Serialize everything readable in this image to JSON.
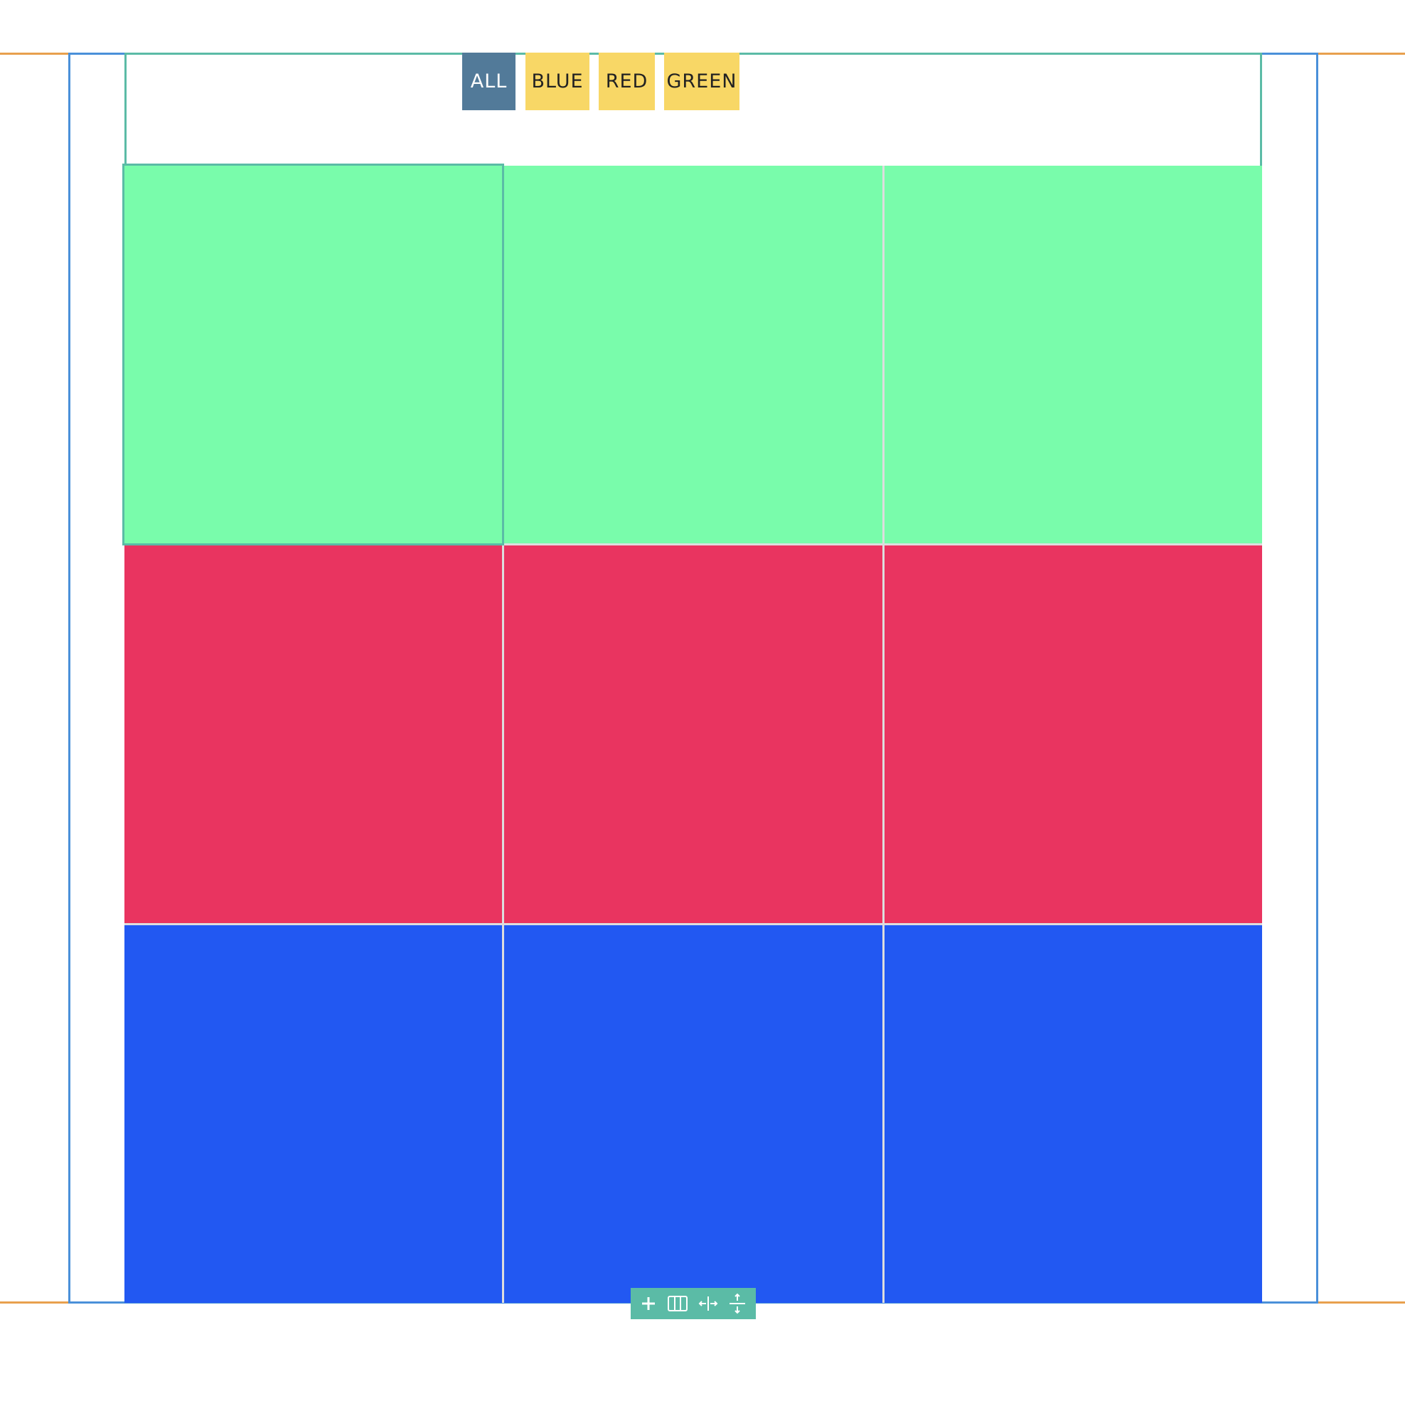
{
  "filters": [
    {
      "label": "ALL",
      "active": true
    },
    {
      "label": "BLUE",
      "active": false
    },
    {
      "label": "RED",
      "active": false
    },
    {
      "label": "GREEN",
      "active": false
    }
  ],
  "grid": {
    "rows": [
      {
        "color": "#79fcab",
        "cells": 3
      },
      {
        "color": "#e93460",
        "cells": 3
      },
      {
        "color": "#2258f2",
        "cells": 3
      }
    ]
  },
  "toolbar": {
    "icons": [
      "plus-icon",
      "columns-icon",
      "resize-horizontal-icon",
      "resize-vertical-icon"
    ]
  },
  "colors": {
    "guide_outer": "#4a90d9",
    "guide_inner": "#5bbba6",
    "margin": "#e8a04e",
    "button_active": "#527a99",
    "button": "#f8d766"
  }
}
